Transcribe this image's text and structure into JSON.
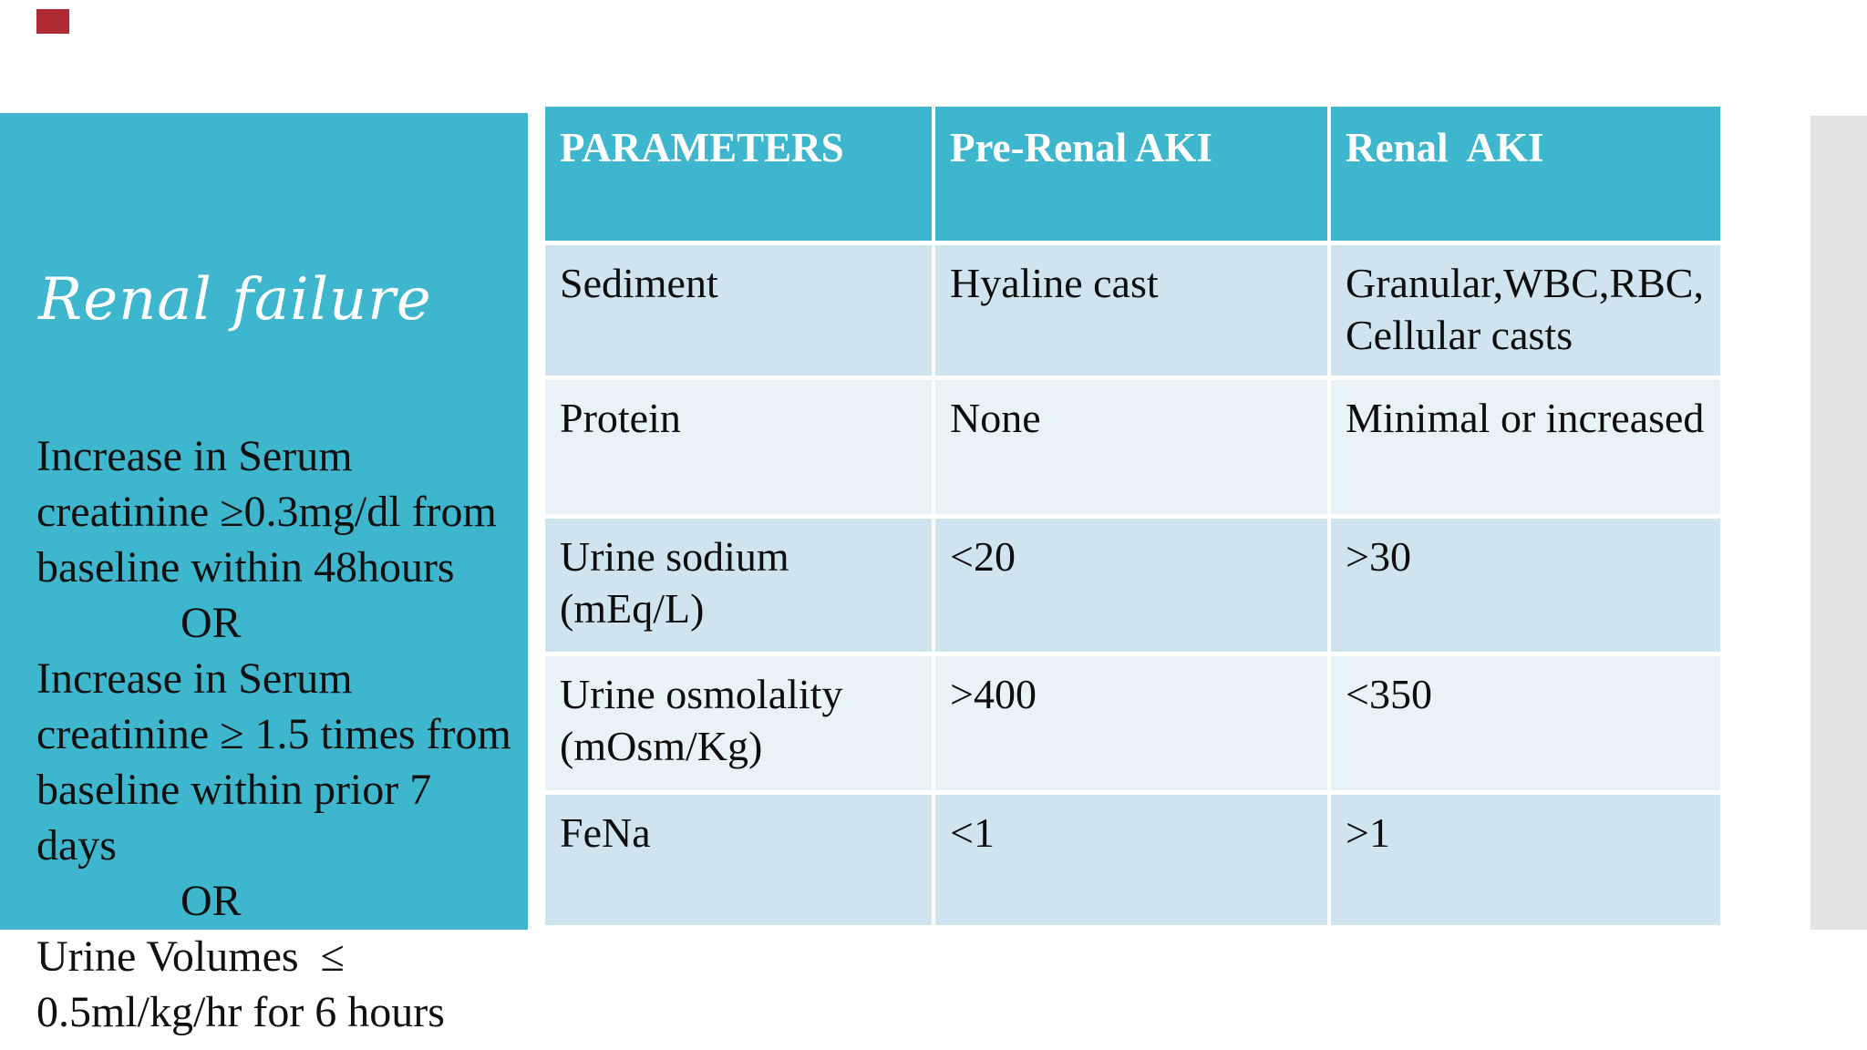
{
  "panel": {
    "title": "Renal failure",
    "body_lines": [
      "Increase in Serum",
      "creatinine ≥0.3mg/dl from",
      "baseline within 48hours",
      "OR",
      "Increase in Serum",
      "creatinine ≥ 1.5 times from",
      "baseline within prior 7 days",
      "OR",
      "Urine Volumes  ≤",
      "0.5ml/kg/hr for 6 hours"
    ]
  },
  "table": {
    "headers": [
      "PARAMETERS",
      "Pre-Renal AKI",
      "Renal  AKI"
    ],
    "rows": [
      [
        "Sediment",
        "Hyaline cast",
        "Granular,WBC,RBC,\nCellular casts"
      ],
      [
        "Protein",
        "None",
        "Minimal or increased"
      ],
      [
        "Urine sodium (mEq/L)",
        "<20",
        ">30"
      ],
      [
        "Urine osmolality\n(mOsm/Kg)",
        ">400",
        "<350"
      ],
      [
        "FeNa",
        "<1",
        ">1"
      ]
    ]
  },
  "colors": {
    "panel_teal": "#3eb7ce",
    "header_teal": "#3eb7ce",
    "row_shade_dark": "#cfe4ee",
    "row_shade_light": "#e9f2f7",
    "right_gutter_gray": "#e3e3e4",
    "red_mark": "#b02a33",
    "text_dark": "#101010",
    "text_light": "#ffffff"
  }
}
